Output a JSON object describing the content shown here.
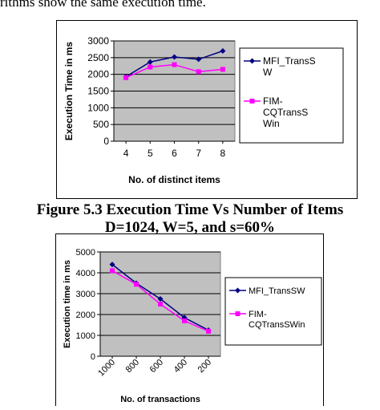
{
  "top_text": "rithms show the same execution time.",
  "caption_line1": "Figure 5.3 Execution Time Vs Number of  Items",
  "caption_line2": "D=1024, W=5,  and s=60%",
  "chart_data": [
    {
      "type": "line",
      "ylabel": "Execution Time in ms",
      "xlabel": "No. of distinct items",
      "categories": [
        "4",
        "5",
        "6",
        "7",
        "8"
      ],
      "ylim": [
        0,
        3000
      ],
      "yticks": [
        "0",
        "500",
        "1000",
        "1500",
        "2000",
        "2500",
        "3000"
      ],
      "grid": true,
      "legend_position": "right",
      "series": [
        {
          "name": "MFI_TransSW",
          "legend_lines": [
            "MFI_TransS",
            "W"
          ],
          "color": "#000080",
          "marker": "diamond",
          "values": [
            1930,
            2370,
            2520,
            2450,
            2700
          ]
        },
        {
          "name": "FIM-CQTransSWin",
          "legend_lines": [
            "FIM-",
            "CQTransS",
            "Win"
          ],
          "color": "#ff00ff",
          "marker": "square",
          "values": [
            1900,
            2220,
            2290,
            2080,
            2150
          ]
        }
      ]
    },
    {
      "type": "line",
      "ylabel": "Execution time in ms",
      "xlabel": "No. of transactions",
      "categories": [
        "1000",
        "800",
        "600",
        "400",
        "200"
      ],
      "ylim": [
        0,
        5000
      ],
      "yticks": [
        "0",
        "1000",
        "2000",
        "3000",
        "4000",
        "5000"
      ],
      "grid": true,
      "legend_position": "right",
      "series": [
        {
          "name": "MFI_TransSW",
          "legend_lines": [
            "MFI_TransSW"
          ],
          "color": "#000080",
          "marker": "diamond",
          "values": [
            4400,
            3500,
            2750,
            1850,
            1250
          ]
        },
        {
          "name": "FIM-CQTransSWin",
          "legend_lines": [
            "FIM-",
            "CQTransSWin"
          ],
          "color": "#ff00ff",
          "marker": "square",
          "values": [
            4100,
            3450,
            2500,
            1700,
            1200
          ]
        }
      ]
    }
  ]
}
